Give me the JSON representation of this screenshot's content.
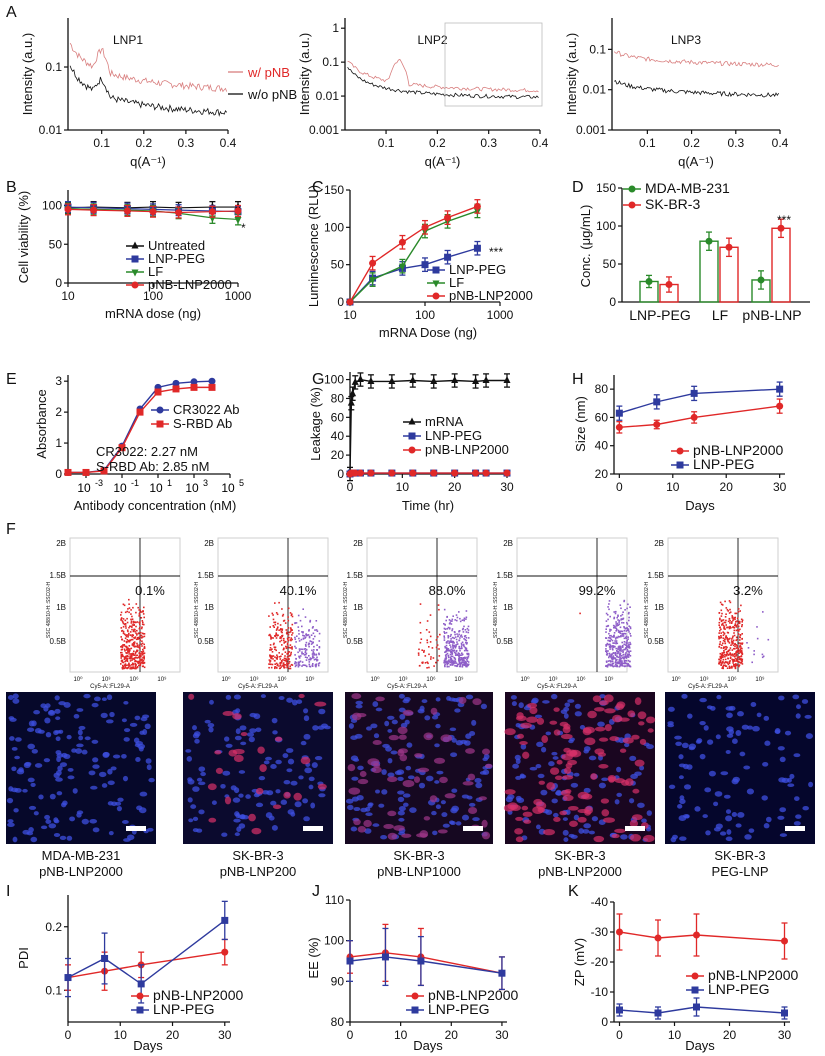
{
  "colors": {
    "red": "#e02828",
    "blue": "#2e3a9e",
    "green": "#2a8a2a",
    "black": "#111111",
    "purple": "#8e5ec8",
    "lightred": "#d98080"
  },
  "panels": {
    "A": {
      "label": "A",
      "ylabel": "Intensity (a.u.)",
      "xlabel": "q(A⁻¹)",
      "plots": [
        {
          "title": "LNP1",
          "yticks": [
            "0.1",
            "0.01"
          ],
          "xticks": [
            "0.1",
            "0.2",
            "0.3",
            "0.4"
          ]
        },
        {
          "title": "LNP2",
          "yticks": [
            "1",
            "0.1",
            "0.01",
            "0.001"
          ],
          "xticks": [
            "0.1",
            "0.2",
            "0.3",
            "0.4"
          ]
        },
        {
          "title": "LNP3",
          "yticks": [
            "0.1",
            "0.01",
            "0.001"
          ],
          "xticks": [
            "0.1",
            "0.2",
            "0.3",
            "0.4"
          ]
        }
      ],
      "legend": [
        "w/ pNB",
        "w/o pNB"
      ]
    },
    "B": {
      "label": "B",
      "ylabel": "Cell viability (%)",
      "xlabel": "mRNA dose (ng)",
      "yticks": [
        "0",
        "50",
        "100"
      ],
      "xticks": [
        "10",
        "100",
        "1000"
      ],
      "legend": [
        "Untreated",
        "LNP-PEG",
        "LF",
        "pNB-LNP2000"
      ],
      "annot": "*"
    },
    "C": {
      "label": "C",
      "ylabel": "Luminescence (RLU)",
      "xlabel": "mRNA Dose (ng)",
      "yticks": [
        "0",
        "50",
        "100",
        "150"
      ],
      "xticks": [
        "10",
        "100",
        "1000"
      ],
      "legend": [
        "LNP-PEG",
        "LF",
        "pNB-LNP2000"
      ],
      "annot": "***"
    },
    "D": {
      "label": "D",
      "ylabel": "Conc. (μg/mL)",
      "yticks": [
        "0",
        "50",
        "100",
        "150"
      ],
      "categories": [
        "LNP-PEG",
        "LF",
        "pNB-LNP"
      ],
      "legend": [
        "MDA-MB-231",
        "SK-BR-3"
      ],
      "annot": "***"
    },
    "E": {
      "label": "E",
      "ylabel": "Absorbance",
      "xlabel": "Antibody concentration (nM)",
      "yticks": [
        "0",
        "1",
        "2",
        "3"
      ],
      "legend": [
        "CR3022 Ab",
        "S-RBD Ab"
      ],
      "note1": "CR3022: 2.27 nM",
      "note2": "S-RBD Ab: 2.85 nM"
    },
    "G": {
      "label": "G",
      "ylabel": "Leakage (%)",
      "xlabel": "Time (hr)",
      "yticks": [
        "0",
        "20",
        "40",
        "60",
        "80",
        "100"
      ],
      "xticks": [
        "0",
        "10",
        "20",
        "30"
      ],
      "legend": [
        "mRNA",
        "LNP-PEG",
        "pNB-LNP2000"
      ]
    },
    "H": {
      "label": "H",
      "ylabel": "Size (nm)",
      "xlabel": "Days",
      "yticks": [
        "20",
        "40",
        "60",
        "80"
      ],
      "xticks": [
        "0",
        "10",
        "20",
        "30"
      ],
      "legend": [
        "pNB-LNP2000",
        "LNP-PEG"
      ]
    },
    "F": {
      "label": "F",
      "gate_labels": {
        "y_top": "2B",
        "y_15": "1.5B",
        "y_1": "1B",
        "y_05": "0.5B",
        "ylabel": "SSC 488/10-H::SSC02-H",
        "xlabel": "Cy5-A::FL29-A",
        "xticks": [
          "10⁰",
          "10³",
          "10⁶",
          "10⁹"
        ]
      },
      "percents": [
        "0.1%",
        "40.1%",
        "88.0%",
        "99.2%",
        "3.2%"
      ],
      "captions": [
        [
          "MDA-MB-231",
          "pNB-LNP2000"
        ],
        [
          "SK-BR-3",
          "pNB-LNP200"
        ],
        [
          "SK-BR-3",
          "pNB-LNP1000"
        ],
        [
          "SK-BR-3",
          "pNB-LNP2000"
        ],
        [
          "SK-BR-3",
          "PEG-LNP"
        ]
      ]
    },
    "I": {
      "label": "I",
      "ylabel": "PDI",
      "xlabel": "Days",
      "yticks": [
        "0.1",
        "0.2"
      ],
      "xticks": [
        "0",
        "10",
        "20",
        "30"
      ],
      "legend": [
        "pNB-LNP2000",
        "LNP-PEG"
      ]
    },
    "J": {
      "label": "J",
      "ylabel": "EE (%)",
      "xlabel": "Days",
      "yticks": [
        "80",
        "90",
        "100",
        "110"
      ],
      "xticks": [
        "0",
        "10",
        "20",
        "30"
      ],
      "legend": [
        "pNB-LNP2000",
        "LNP-PEG"
      ]
    },
    "K": {
      "label": "K",
      "ylabel": "ZP (mV)",
      "xlabel": "Days",
      "yticks": [
        "-40",
        "-30",
        "-20",
        "-10",
        "0"
      ],
      "xticks": [
        "0",
        "10",
        "20",
        "30"
      ],
      "legend": [
        "pNB-LNP2000",
        "LNP-PEG"
      ]
    }
  },
  "chart_data": [
    {
      "panel": "B",
      "type": "line",
      "xscale": "log",
      "x": [
        10,
        20,
        50,
        100,
        200,
        500,
        1000
      ],
      "ylim": [
        0,
        120
      ],
      "series": [
        {
          "name": "Untreated",
          "values": [
            97,
            98,
            97,
            98,
            97,
            98,
            98
          ]
        },
        {
          "name": "LNP-PEG",
          "values": [
            98,
            97,
            96,
            95,
            94,
            93,
            92
          ]
        },
        {
          "name": "LF",
          "values": [
            96,
            95,
            94,
            93,
            90,
            84,
            82
          ]
        },
        {
          "name": "pNB-LNP2000",
          "values": [
            95,
            94,
            93,
            92,
            91,
            92,
            93
          ]
        }
      ]
    },
    {
      "panel": "C",
      "type": "line",
      "xscale": "log",
      "x": [
        10,
        20,
        50,
        100,
        200,
        500
      ],
      "ylim": [
        0,
        150
      ],
      "series": [
        {
          "name": "LNP-PEG",
          "values": [
            0,
            32,
            45,
            50,
            60,
            72
          ]
        },
        {
          "name": "LF",
          "values": [
            0,
            30,
            48,
            95,
            108,
            122
          ]
        },
        {
          "name": "pNB-LNP2000",
          "values": [
            0,
            52,
            80,
            100,
            113,
            128
          ]
        }
      ]
    },
    {
      "panel": "D",
      "type": "bar",
      "categories": [
        "LNP-PEG",
        "LF",
        "pNB-LNP"
      ],
      "ylim": [
        0,
        150
      ],
      "series": [
        {
          "name": "MDA-MB-231",
          "values": [
            27,
            80,
            29
          ],
          "errors": [
            8,
            12,
            12
          ]
        },
        {
          "name": "SK-BR-3",
          "values": [
            23,
            72,
            97
          ],
          "errors": [
            10,
            12,
            12
          ]
        }
      ]
    },
    {
      "panel": "E",
      "type": "line",
      "xscale": "log",
      "x": [
        0.0001,
        0.001,
        0.01,
        0.1,
        1,
        10,
        100,
        1000,
        10000
      ],
      "ylim": [
        0,
        3.2
      ],
      "series": [
        {
          "name": "CR3022 Ab",
          "values": [
            0.05,
            0.05,
            0.12,
            0.9,
            2.1,
            2.8,
            2.93,
            2.98,
            3.0
          ]
        },
        {
          "name": "S-RBD Ab",
          "values": [
            0.05,
            0.05,
            0.1,
            0.85,
            2.0,
            2.65,
            2.75,
            2.8,
            2.8
          ]
        }
      ]
    },
    {
      "panel": "G",
      "type": "line",
      "x": [
        0,
        0.25,
        0.5,
        1,
        2,
        4,
        8,
        12,
        16,
        20,
        24,
        26,
        30
      ],
      "ylim": [
        0,
        110
      ],
      "series": [
        {
          "name": "mRNA",
          "values": [
            0,
            75,
            85,
            97,
            100,
            98,
            98,
            99,
            98,
            99,
            98,
            99,
            99
          ]
        },
        {
          "name": "LNP-PEG",
          "values": [
            0,
            1,
            1,
            1,
            1,
            1,
            1,
            1,
            1,
            1,
            1,
            1,
            1
          ]
        },
        {
          "name": "pNB-LNP2000",
          "values": [
            0,
            1,
            1,
            1,
            1,
            1,
            1,
            1,
            1,
            1,
            1,
            1,
            1
          ]
        }
      ]
    },
    {
      "panel": "H",
      "type": "line",
      "x": [
        0,
        7,
        14,
        30
      ],
      "ylim": [
        20,
        90
      ],
      "series": [
        {
          "name": "pNB-LNP2000",
          "values": [
            53,
            55,
            60,
            68
          ],
          "errors": [
            4,
            3,
            4,
            5
          ]
        },
        {
          "name": "LNP-PEG",
          "values": [
            63,
            71,
            77,
            80
          ],
          "errors": [
            5,
            5,
            5,
            5
          ]
        }
      ]
    },
    {
      "panel": "I",
      "type": "line",
      "x": [
        0,
        7,
        14,
        30
      ],
      "ylim": [
        0.05,
        0.25
      ],
      "series": [
        {
          "name": "pNB-LNP2000",
          "values": [
            0.12,
            0.13,
            0.14,
            0.16
          ],
          "errors": [
            0.02,
            0.03,
            0.02,
            0.02
          ]
        },
        {
          "name": "LNP-PEG",
          "values": [
            0.12,
            0.15,
            0.11,
            0.21
          ],
          "errors": [
            0.03,
            0.04,
            0.03,
            0.03
          ]
        }
      ]
    },
    {
      "panel": "J",
      "type": "line",
      "x": [
        0,
        7,
        14,
        30
      ],
      "ylim": [
        80,
        110
      ],
      "series": [
        {
          "name": "pNB-LNP2000",
          "values": [
            96,
            97,
            96,
            92
          ],
          "errors": [
            4,
            7,
            7,
            4
          ]
        },
        {
          "name": "LNP-PEG",
          "values": [
            95,
            96,
            95,
            92
          ],
          "errors": [
            5,
            7,
            6,
            4
          ]
        }
      ]
    },
    {
      "panel": "K",
      "type": "line",
      "x": [
        0,
        7,
        14,
        30
      ],
      "ylim": [
        0,
        -40
      ],
      "yinverted": true,
      "series": [
        {
          "name": "pNB-LNP2000",
          "values": [
            -30,
            -28,
            -29,
            -27
          ],
          "errors": [
            6,
            6,
            7,
            6
          ]
        },
        {
          "name": "LNP-PEG",
          "values": [
            -4,
            -3,
            -5,
            -3
          ],
          "errors": [
            2,
            2,
            3,
            2
          ]
        }
      ]
    }
  ]
}
